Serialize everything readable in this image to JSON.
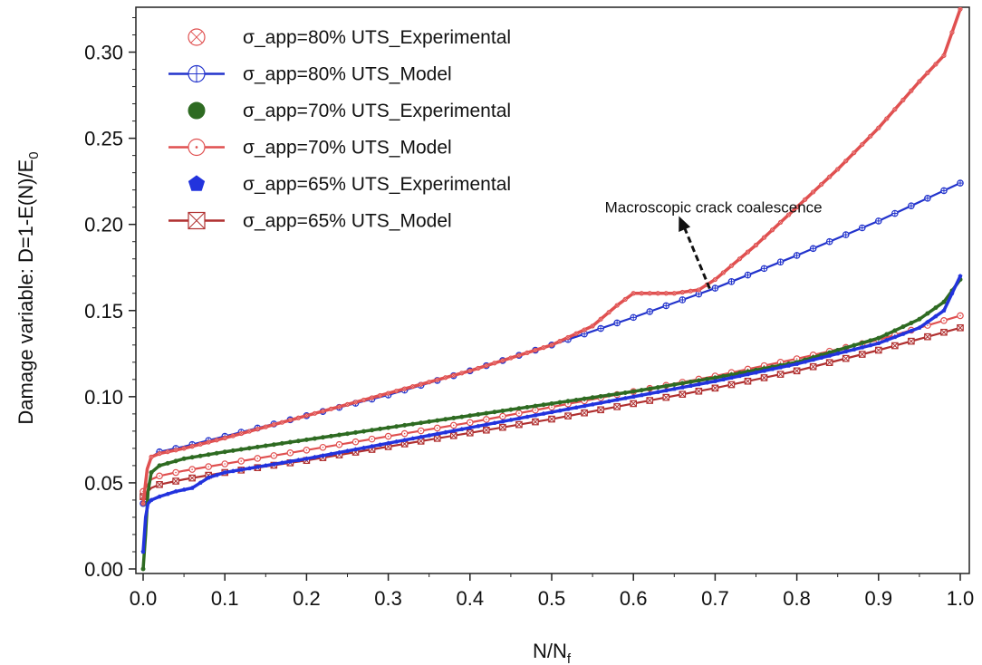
{
  "chart_data": {
    "type": "line",
    "title": "",
    "xlabel": "N/N",
    "xlabel_sub": "f",
    "ylabel": "Damage variable: D=1-E(N)/E",
    "ylabel_sub": "0",
    "xlim": [
      0.0,
      1.0
    ],
    "ylim": [
      0.0,
      0.325
    ],
    "x_ticks": [
      "0.0",
      "0.1",
      "0.2",
      "0.3",
      "0.4",
      "0.5",
      "0.6",
      "0.7",
      "0.8",
      "0.9",
      "1.0"
    ],
    "y_ticks": [
      "0.00",
      "0.05",
      "0.10",
      "0.15",
      "0.20",
      "0.25",
      "0.30"
    ],
    "grid": false,
    "legend_position": "top-left",
    "series": [
      {
        "name": "σ_app=80% UTS_Experimental",
        "color": "#e05050",
        "marker": "circle-x",
        "x": [
          0.0,
          0.005,
          0.01,
          0.02,
          0.05,
          0.1,
          0.2,
          0.3,
          0.4,
          0.5,
          0.55,
          0.58,
          0.6,
          0.62,
          0.65,
          0.68,
          0.7,
          0.75,
          0.8,
          0.85,
          0.9,
          0.95,
          0.98,
          1.0
        ],
        "y": [
          0.038,
          0.058,
          0.065,
          0.067,
          0.07,
          0.076,
          0.089,
          0.102,
          0.115,
          0.13,
          0.141,
          0.153,
          0.16,
          0.16,
          0.16,
          0.162,
          0.168,
          0.188,
          0.21,
          0.232,
          0.256,
          0.283,
          0.298,
          0.325
        ]
      },
      {
        "name": "σ_app=80% UTS_Model",
        "color": "#2233cc",
        "marker": "circle-plus",
        "x": [
          0.0,
          0.005,
          0.01,
          0.02,
          0.05,
          0.1,
          0.2,
          0.3,
          0.4,
          0.5,
          0.6,
          0.7,
          0.8,
          0.9,
          1.0
        ],
        "y": [
          0.038,
          0.058,
          0.065,
          0.068,
          0.071,
          0.077,
          0.089,
          0.101,
          0.115,
          0.13,
          0.146,
          0.163,
          0.182,
          0.202,
          0.224
        ]
      },
      {
        "name": "σ_app=70% UTS_Experimental",
        "color": "#2e6b22",
        "marker": "filled-circle",
        "x": [
          0.0,
          0.003,
          0.006,
          0.01,
          0.02,
          0.05,
          0.1,
          0.2,
          0.3,
          0.4,
          0.5,
          0.6,
          0.7,
          0.8,
          0.9,
          0.95,
          0.98,
          1.0
        ],
        "y": [
          0.0,
          0.02,
          0.045,
          0.056,
          0.06,
          0.064,
          0.068,
          0.075,
          0.082,
          0.089,
          0.096,
          0.103,
          0.111,
          0.12,
          0.134,
          0.145,
          0.155,
          0.168
        ]
      },
      {
        "name": "σ_app=70% UTS_Model",
        "color": "#e05050",
        "marker": "open-circle",
        "x": [
          0.0,
          0.01,
          0.02,
          0.05,
          0.1,
          0.2,
          0.3,
          0.4,
          0.5,
          0.6,
          0.7,
          0.8,
          0.9,
          1.0
        ],
        "y": [
          0.045,
          0.052,
          0.054,
          0.057,
          0.061,
          0.069,
          0.077,
          0.085,
          0.094,
          0.103,
          0.112,
          0.122,
          0.133,
          0.147
        ]
      },
      {
        "name": "σ_app=65% UTS_Experimental",
        "color": "#2233dd",
        "marker": "filled-pentagon",
        "x": [
          0.0,
          0.003,
          0.006,
          0.01,
          0.02,
          0.04,
          0.06,
          0.07,
          0.08,
          0.1,
          0.2,
          0.3,
          0.4,
          0.5,
          0.6,
          0.7,
          0.8,
          0.9,
          0.95,
          0.98,
          1.0
        ],
        "y": [
          0.01,
          0.03,
          0.038,
          0.04,
          0.042,
          0.045,
          0.047,
          0.05,
          0.053,
          0.056,
          0.064,
          0.073,
          0.082,
          0.091,
          0.1,
          0.109,
          0.119,
          0.131,
          0.14,
          0.15,
          0.17
        ]
      },
      {
        "name": "σ_app=65% UTS_Model",
        "color": "#b03030",
        "marker": "square-x",
        "x": [
          0.0,
          0.01,
          0.02,
          0.05,
          0.1,
          0.2,
          0.3,
          0.4,
          0.5,
          0.6,
          0.7,
          0.8,
          0.9,
          1.0
        ],
        "y": [
          0.042,
          0.047,
          0.049,
          0.052,
          0.056,
          0.063,
          0.071,
          0.079,
          0.087,
          0.096,
          0.105,
          0.115,
          0.127,
          0.14
        ]
      }
    ],
    "annotations": [
      {
        "text": "Macroscopic crack coalescence",
        "x": 0.7,
        "y": 0.168,
        "text_x": 0.565,
        "text_y": 0.207
      }
    ]
  }
}
